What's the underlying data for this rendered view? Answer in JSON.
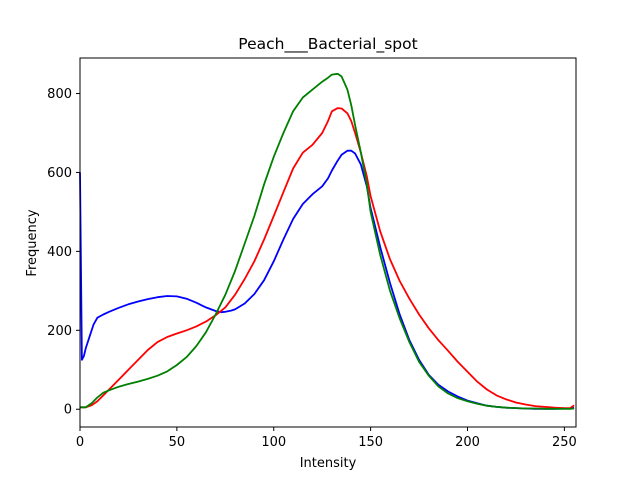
{
  "chart_data": {
    "type": "line",
    "title": "Peach___Bacterial_spot",
    "xlabel": "Intensity",
    "ylabel": "Frequency",
    "xlim": [
      0,
      256
    ],
    "ylim": [
      -45,
      890
    ],
    "xticks": [
      0,
      50,
      100,
      150,
      200,
      250
    ],
    "yticks": [
      0,
      200,
      400,
      600,
      800
    ],
    "grid": false,
    "legend": "none",
    "series": [
      {
        "color": "#0000ff",
        "x": [
          0,
          1,
          2,
          3,
          5,
          7,
          9,
          12,
          15,
          20,
          25,
          30,
          35,
          40,
          45,
          50,
          55,
          60,
          65,
          70,
          73,
          75,
          78,
          80,
          85,
          90,
          95,
          100,
          105,
          110,
          115,
          120,
          125,
          128,
          130,
          133,
          135,
          138,
          140,
          142,
          145,
          148,
          150,
          155,
          160,
          165,
          170,
          175,
          180,
          185,
          190,
          195,
          200,
          205,
          210,
          215,
          220,
          225,
          230,
          235,
          240,
          245,
          250,
          253,
          255
        ],
        "y": [
          600,
          125,
          135,
          155,
          185,
          215,
          232,
          240,
          247,
          257,
          266,
          273,
          279,
          284,
          287,
          286,
          280,
          270,
          258,
          249,
          246,
          247,
          250,
          253,
          268,
          292,
          327,
          375,
          430,
          482,
          520,
          545,
          565,
          585,
          605,
          630,
          645,
          655,
          655,
          648,
          620,
          565,
          510,
          410,
          320,
          240,
          175,
          125,
          87,
          62,
          45,
          32,
          22,
          15,
          9,
          6,
          4,
          3,
          2,
          1,
          1,
          1,
          2,
          2,
          4
        ]
      },
      {
        "color": "#ff0000",
        "x": [
          0,
          3,
          6,
          9,
          12,
          15,
          20,
          25,
          30,
          35,
          40,
          45,
          50,
          55,
          60,
          65,
          70,
          75,
          80,
          85,
          90,
          95,
          100,
          105,
          110,
          115,
          120,
          125,
          128,
          130,
          133,
          135,
          138,
          140,
          142,
          145,
          148,
          150,
          155,
          160,
          165,
          170,
          175,
          180,
          185,
          190,
          195,
          200,
          205,
          210,
          215,
          220,
          225,
          230,
          235,
          240,
          245,
          250,
          253,
          255
        ],
        "y": [
          5,
          5,
          10,
          20,
          35,
          50,
          75,
          100,
          125,
          150,
          170,
          183,
          192,
          200,
          210,
          222,
          238,
          258,
          290,
          330,
          375,
          430,
          490,
          550,
          610,
          650,
          670,
          700,
          730,
          755,
          763,
          762,
          750,
          730,
          700,
          650,
          590,
          540,
          450,
          380,
          325,
          280,
          240,
          205,
          175,
          148,
          120,
          95,
          70,
          50,
          35,
          25,
          17,
          12,
          8,
          6,
          4,
          3,
          3,
          10
        ]
      },
      {
        "color": "#008000",
        "x": [
          0,
          3,
          6,
          9,
          12,
          15,
          20,
          25,
          30,
          35,
          40,
          45,
          50,
          55,
          60,
          65,
          70,
          75,
          80,
          85,
          90,
          95,
          100,
          105,
          110,
          115,
          120,
          125,
          128,
          130,
          133,
          135,
          138,
          140,
          142,
          145,
          148,
          150,
          155,
          160,
          165,
          170,
          175,
          180,
          185,
          190,
          195,
          200,
          205,
          210,
          215,
          220,
          225,
          230,
          235,
          240,
          245,
          250,
          253,
          255
        ],
        "y": [
          5,
          5,
          15,
          30,
          42,
          48,
          57,
          64,
          70,
          77,
          85,
          96,
          112,
          132,
          160,
          195,
          240,
          290,
          350,
          420,
          490,
          570,
          640,
          700,
          755,
          790,
          810,
          830,
          840,
          848,
          850,
          843,
          810,
          770,
          720,
          650,
          570,
          500,
          390,
          300,
          230,
          170,
          120,
          85,
          58,
          40,
          28,
          20,
          14,
          9,
          6,
          4,
          3,
          2,
          2,
          1,
          1,
          1,
          1,
          2
        ]
      }
    ]
  }
}
